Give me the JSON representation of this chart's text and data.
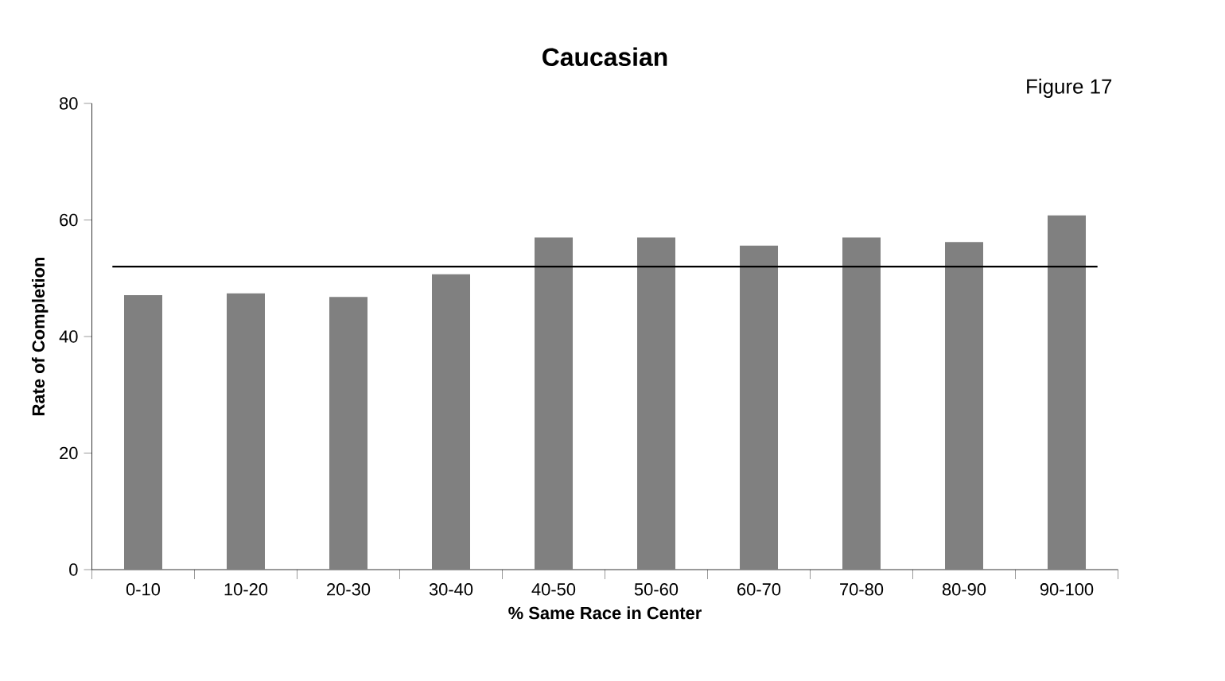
{
  "chart_data": {
    "type": "bar",
    "title": "Caucasian",
    "xlabel": "% Same Race in Center",
    "ylabel": "Rate of Completion",
    "annotations": [
      "Figure 17"
    ],
    "categories": [
      "0-10",
      "10-20",
      "20-30",
      "30-40",
      "40-50",
      "50-60",
      "60-70",
      "70-80",
      "80-90",
      "90-100"
    ],
    "values": [
      47.1,
      47.4,
      46.8,
      50.7,
      57,
      57,
      55.6,
      57,
      56.2,
      60.8
    ],
    "color": "#808080",
    "ylim": [
      0,
      80
    ],
    "yticks": [
      0,
      20,
      40,
      60,
      80
    ],
    "grid": false,
    "ref_lines": [
      {
        "axis": "y",
        "value": 52,
        "color": "#000000"
      }
    ]
  }
}
